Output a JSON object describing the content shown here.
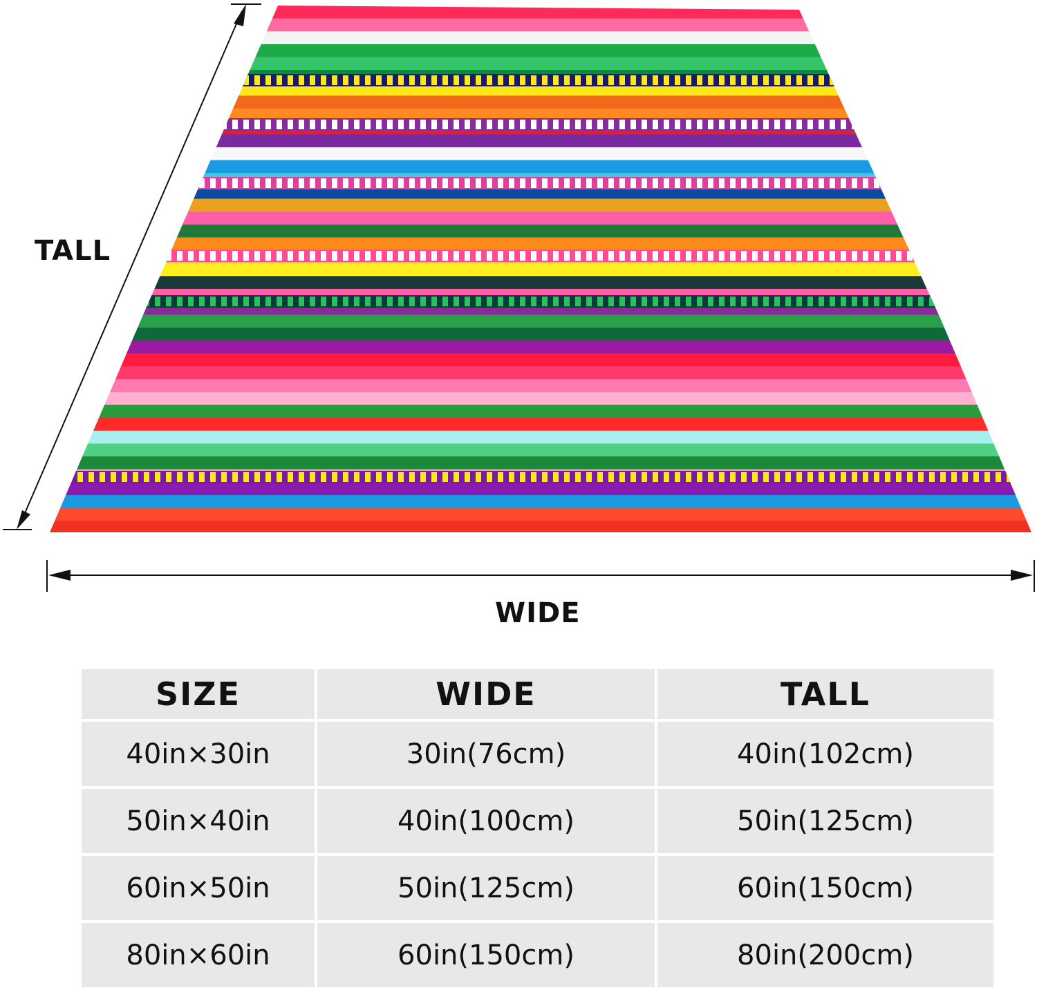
{
  "diagram": {
    "tall_label": "TALL",
    "wide_label": "WIDE"
  },
  "blanket_stripes": [
    {
      "color": "#ff2a5a"
    },
    {
      "color": "#ff6aa0"
    },
    {
      "color": "#f4f4f4"
    },
    {
      "color": "#1faa4a"
    },
    {
      "color": "#35c46a"
    },
    {
      "color": "#0e8a3a"
    },
    {
      "color": "#ffe818"
    },
    {
      "color": "#f06a1c"
    },
    {
      "color": "#ff8a20"
    },
    {
      "color": "#e0202a"
    },
    {
      "color": "#7a2aa0"
    },
    {
      "color": "#f8f8f8"
    },
    {
      "color": "#1a9ae0"
    },
    {
      "color": "#40c8f0"
    },
    {
      "color": "#0a4aa0"
    },
    {
      "color": "#e8a020"
    },
    {
      "color": "#ff5fa8"
    },
    {
      "color": "#1f7a3a"
    },
    {
      "color": "#ff8a1c"
    },
    {
      "color": "#ffd21a"
    },
    {
      "color": "#ffef20"
    },
    {
      "color": "#1a3a3a"
    },
    {
      "color": "#ff5fa8"
    },
    {
      "color": "#8a2a9a"
    },
    {
      "color": "#2aa04a"
    },
    {
      "color": "#0f6a3a"
    },
    {
      "color": "#9a1aa0"
    },
    {
      "color": "#ff1a40"
    },
    {
      "color": "#ff3a6a"
    },
    {
      "color": "#ff7ab0"
    },
    {
      "color": "#ffb0d0"
    },
    {
      "color": "#2a9a3a"
    },
    {
      "color": "#ff2a2a"
    },
    {
      "color": "#a8f0f0"
    },
    {
      "color": "#50d080"
    },
    {
      "color": "#1a8a3a"
    },
    {
      "color": "#ff9ab8"
    },
    {
      "color": "#8a1ab0"
    },
    {
      "color": "#1a9ae0"
    },
    {
      "color": "#ff4a30"
    },
    {
      "color": "#f03020"
    }
  ],
  "table": {
    "headers": [
      "SIZE",
      "WIDE",
      "TALL"
    ],
    "rows": [
      [
        "40in×30in",
        "30in(76cm)",
        "40in(102cm)"
      ],
      [
        "50in×40in",
        "40in(100cm)",
        "50in(125cm)"
      ],
      [
        "60in×50in",
        "50in(125cm)",
        "60in(150cm)"
      ],
      [
        "80in×60in",
        "60in(150cm)",
        "80in(200cm)"
      ]
    ]
  }
}
